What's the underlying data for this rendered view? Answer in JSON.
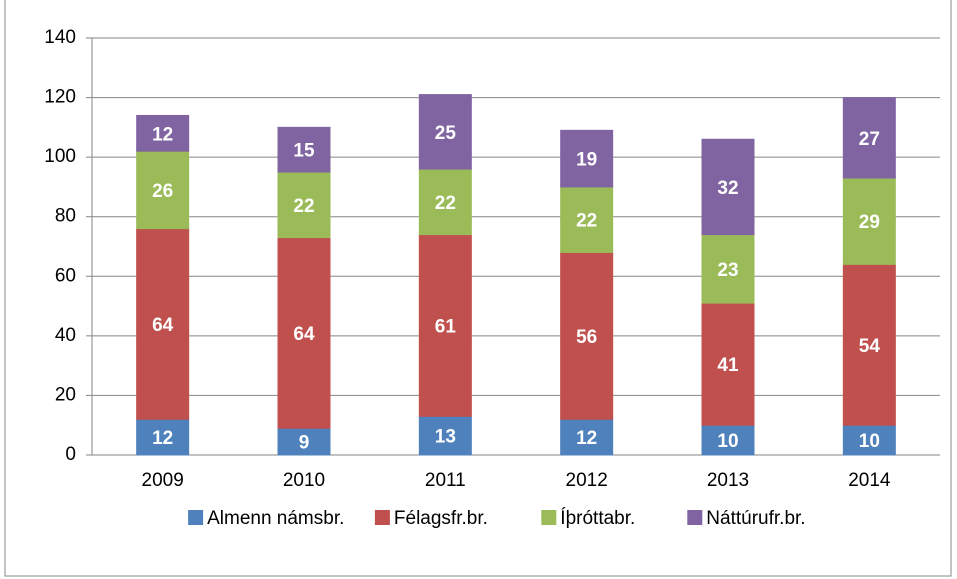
{
  "chart_data": {
    "type": "stacked_bar",
    "categories": [
      "2009",
      "2010",
      "2011",
      "2012",
      "2013",
      "2014"
    ],
    "series": [
      {
        "name": "Almenn námsbr.",
        "color": "#4f81bd",
        "values": [
          12,
          9,
          13,
          12,
          10,
          10
        ]
      },
      {
        "name": "Félagsfr.br.",
        "color": "#c0504d",
        "values": [
          64,
          64,
          61,
          56,
          41,
          54
        ]
      },
      {
        "name": "Íþróttabr.",
        "color": "#9bbb59",
        "values": [
          26,
          22,
          22,
          22,
          23,
          29
        ]
      },
      {
        "name": "Náttúrufr.br.",
        "color": "#8064a2",
        "values": [
          12,
          15,
          25,
          19,
          32,
          27
        ]
      }
    ],
    "ylim": [
      0,
      140
    ],
    "yticks": [
      0,
      20,
      40,
      60,
      80,
      100,
      120,
      140
    ],
    "grid": true,
    "legend": "bottom"
  }
}
